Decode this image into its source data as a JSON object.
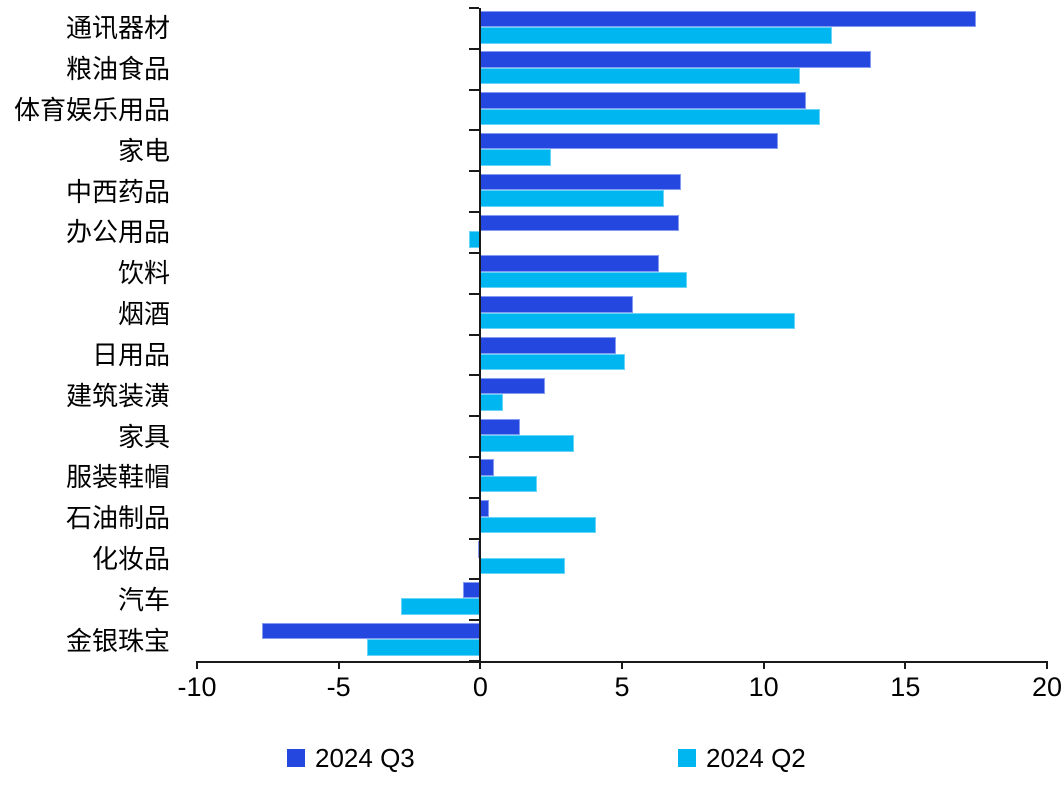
{
  "chart_data": {
    "type": "bar",
    "orientation": "horizontal",
    "title": "",
    "xlabel": "",
    "ylabel": "",
    "xlim": [
      -10,
      20
    ],
    "xticks": [
      "-10",
      "-5",
      "0",
      "5",
      "10",
      "15",
      "20"
    ],
    "xtick_values": [
      -10,
      -5,
      0,
      5,
      10,
      15,
      20
    ],
    "grid": false,
    "legend_position": "bottom",
    "categories": [
      "通讯器材",
      "粮油食品",
      "体育娱乐用品",
      "家电",
      "中西药品",
      "办公用品",
      "饮料",
      "烟酒",
      "日用品",
      "建筑装潢",
      "家具",
      "服装鞋帽",
      "石油制品",
      "化妆品",
      "汽车",
      "金银珠宝"
    ],
    "series": [
      {
        "name": "2024 Q3",
        "color": "#2447E0",
        "values": [
          17.5,
          13.8,
          11.5,
          10.5,
          7.1,
          7.0,
          6.3,
          5.4,
          4.8,
          2.3,
          1.4,
          0.5,
          0.3,
          -0.1,
          -0.6,
          -7.7
        ]
      },
      {
        "name": "2024 Q2",
        "color": "#00B6F0",
        "values": [
          12.4,
          11.3,
          12.0,
          2.5,
          6.5,
          -0.4,
          7.3,
          11.1,
          5.1,
          0.8,
          3.3,
          2.0,
          4.1,
          3.0,
          -2.8,
          -4.0
        ]
      }
    ]
  }
}
